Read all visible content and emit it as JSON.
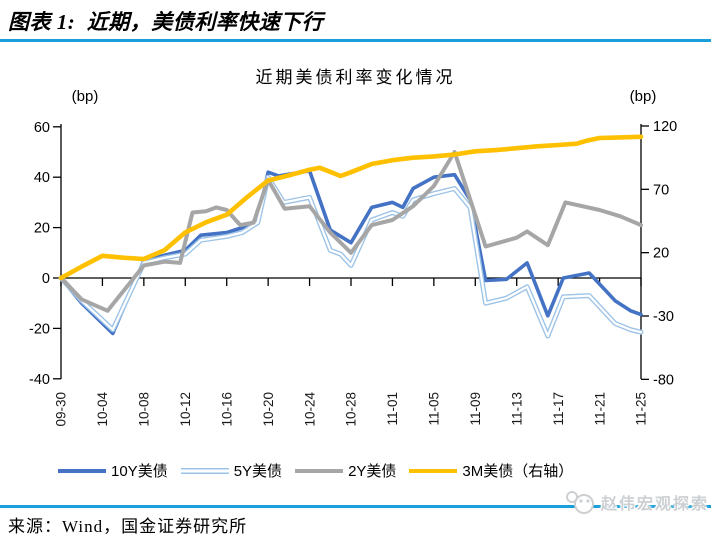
{
  "page": {
    "header_title": "图表 1:  近期，美债利率快速下行",
    "source_text": "来源：Wind，国金证券研究所",
    "watermark": "赵伟宏观探索",
    "accent_color": "#1a9fda"
  },
  "chart_data": {
    "type": "line",
    "title": "近期美债利率变化情况",
    "left_axis": {
      "unit": "(bp)",
      "ticks": [
        60,
        40,
        20,
        0,
        -20,
        -40
      ],
      "min": -40,
      "max": 60
    },
    "right_axis": {
      "unit": "(bp)",
      "ticks": [
        120,
        70,
        20,
        -30,
        -80
      ],
      "min": -80,
      "max": 120
    },
    "x_ticks": [
      "09-30",
      "10-04",
      "10-08",
      "10-12",
      "10-16",
      "10-20",
      "10-24",
      "10-28",
      "11-01",
      "11-05",
      "11-09",
      "11-13",
      "11-17",
      "11-21",
      "11-25"
    ],
    "x_days_span": 56,
    "grid": false,
    "legend_position": "bottom",
    "series": [
      {
        "name": "10Y美债",
        "axis": "left",
        "color": "#4472C4",
        "width": 3.6,
        "tube": false,
        "points": [
          [
            0,
            0
          ],
          [
            2,
            -10
          ],
          [
            5,
            -22
          ],
          [
            8,
            7
          ],
          [
            10,
            9
          ],
          [
            12,
            11
          ],
          [
            13.5,
            17
          ],
          [
            16,
            18
          ],
          [
            17.5,
            20
          ],
          [
            19,
            23
          ],
          [
            20,
            42
          ],
          [
            21,
            40.5
          ],
          [
            24,
            42.5
          ],
          [
            26,
            19
          ],
          [
            28,
            14
          ],
          [
            30,
            28
          ],
          [
            32,
            30
          ],
          [
            33,
            28
          ],
          [
            34,
            35.5
          ],
          [
            36,
            40
          ],
          [
            38,
            41
          ],
          [
            39.5,
            31
          ],
          [
            41,
            -1
          ],
          [
            43,
            -0.5
          ],
          [
            45,
            6
          ],
          [
            47,
            -15
          ],
          [
            48.5,
            0
          ],
          [
            51,
            2
          ],
          [
            53.5,
            -9
          ],
          [
            55,
            -13
          ],
          [
            56,
            -14.5
          ]
        ]
      },
      {
        "name": "5Y美债",
        "axis": "left",
        "color": "#9DC3E6",
        "width": 5,
        "tube": true,
        "points": [
          [
            0,
            0
          ],
          [
            2,
            -9
          ],
          [
            5,
            -20.5
          ],
          [
            8,
            6
          ],
          [
            10,
            8
          ],
          [
            12,
            9.5
          ],
          [
            13.5,
            15
          ],
          [
            16,
            16.5
          ],
          [
            17.5,
            18
          ],
          [
            19,
            22
          ],
          [
            20,
            40
          ],
          [
            21.5,
            30
          ],
          [
            24,
            32
          ],
          [
            26,
            11
          ],
          [
            27,
            9.5
          ],
          [
            28,
            5
          ],
          [
            30,
            23
          ],
          [
            32,
            26
          ],
          [
            33,
            24.5
          ],
          [
            34,
            31
          ],
          [
            36,
            33.5
          ],
          [
            38,
            35.5
          ],
          [
            39.5,
            28
          ],
          [
            41,
            -10
          ],
          [
            43,
            -8
          ],
          [
            45,
            -3.5
          ],
          [
            47,
            -23
          ],
          [
            48.5,
            -7.5
          ],
          [
            51,
            -7
          ],
          [
            53.5,
            -18
          ],
          [
            55,
            -20.5
          ],
          [
            56,
            -21.5
          ]
        ]
      },
      {
        "name": "2Y美债",
        "axis": "left",
        "color": "#A6A6A6",
        "width": 4,
        "tube": false,
        "points": [
          [
            0,
            0
          ],
          [
            2,
            -8.5
          ],
          [
            4.5,
            -13
          ],
          [
            8,
            5
          ],
          [
            10,
            6.5
          ],
          [
            11.5,
            6
          ],
          [
            12.7,
            26
          ],
          [
            14,
            26.5
          ],
          [
            15,
            28
          ],
          [
            16,
            27
          ],
          [
            17.3,
            21
          ],
          [
            18.6,
            22
          ],
          [
            20,
            39
          ],
          [
            21.6,
            27.5
          ],
          [
            24,
            28.5
          ],
          [
            26,
            18
          ],
          [
            28,
            10
          ],
          [
            30,
            21
          ],
          [
            32,
            23
          ],
          [
            34,
            28.5
          ],
          [
            36,
            36.5
          ],
          [
            38,
            50
          ],
          [
            41,
            12.5
          ],
          [
            44,
            16
          ],
          [
            45,
            18.5
          ],
          [
            47,
            13
          ],
          [
            48.7,
            30
          ],
          [
            52,
            27
          ],
          [
            54,
            24.5
          ],
          [
            56,
            21
          ]
        ]
      },
      {
        "name": "3M美债（右轴）",
        "axis": "right",
        "color": "#FFC000",
        "width": 4.6,
        "tube": false,
        "points": [
          [
            0,
            0
          ],
          [
            2,
            9
          ],
          [
            4,
            17.5
          ],
          [
            6,
            16
          ],
          [
            8,
            15
          ],
          [
            10,
            22
          ],
          [
            12,
            36
          ],
          [
            14,
            44
          ],
          [
            16,
            50
          ],
          [
            18,
            64
          ],
          [
            20,
            77
          ],
          [
            22,
            81
          ],
          [
            24,
            85.5
          ],
          [
            25,
            87
          ],
          [
            27,
            80.5
          ],
          [
            28,
            83.5
          ],
          [
            30,
            90
          ],
          [
            32,
            93
          ],
          [
            34,
            95
          ],
          [
            36,
            96
          ],
          [
            38,
            97.5
          ],
          [
            40,
            100
          ],
          [
            42,
            101
          ],
          [
            44,
            102.5
          ],
          [
            46,
            104
          ],
          [
            48,
            105
          ],
          [
            49.8,
            106
          ],
          [
            50.8,
            108.5
          ],
          [
            52,
            110.5
          ],
          [
            54,
            111
          ],
          [
            56,
            111.5
          ]
        ]
      }
    ]
  }
}
